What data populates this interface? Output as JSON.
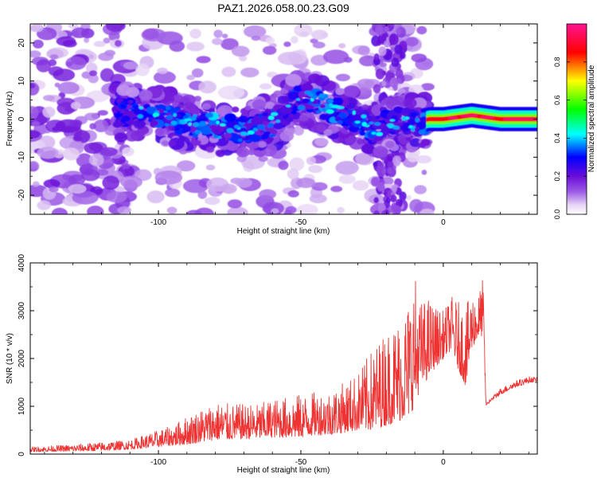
{
  "title": "PAZ1.2026.058.00.23.G09",
  "chart_data": [
    {
      "type": "heatmap",
      "title": "PAZ1.2026.058.00.23.G09",
      "xlabel": "Height of straight line (km)",
      "ylabel": "Frequency (Hz)",
      "xlim": [
        -145,
        33
      ],
      "ylim": [
        -25,
        25
      ],
      "xticks": [
        -100,
        -50,
        0
      ],
      "yticks": [
        -20,
        -10,
        0,
        10,
        20
      ],
      "colorbar": {
        "label": "Normalized spectral amplitude",
        "range": [
          0,
          1
        ],
        "ticks": [
          0.0,
          0.2,
          0.4,
          0.6,
          0.8
        ],
        "colors": [
          "#ffffff",
          "#e6d3f5",
          "#9b59e6",
          "#6a0dd9",
          "#0000ff",
          "#00ffff",
          "#00ff00",
          "#ffff00",
          "#ff0000",
          "#ff1493"
        ]
      },
      "ridge": {
        "x": [
          -115,
          -100,
          -90,
          -80,
          -70,
          -60,
          -55,
          -50,
          -40,
          -30,
          -25,
          -15,
          -10,
          -5,
          0,
          5,
          10,
          15,
          20,
          25,
          33
        ],
        "frequency": [
          2,
          1,
          -1,
          -2,
          -3,
          -1,
          2,
          6,
          3,
          0,
          -3,
          0,
          -1,
          0,
          0,
          0.5,
          1,
          0.5,
          0,
          0,
          0
        ],
        "peak_amplitude": [
          0.25,
          0.3,
          0.3,
          0.35,
          0.3,
          0.3,
          0.3,
          0.3,
          0.35,
          0.35,
          0.3,
          0.2,
          0.25,
          0.35,
          0.9,
          0.9,
          0.95,
          0.9,
          0.85,
          0.85,
          0.8
        ]
      }
    },
    {
      "type": "line",
      "xlabel": "Height of straight line (km)",
      "ylabel": "SNR (10 * v/v)",
      "xlim": [
        -145,
        33
      ],
      "ylim": [
        0,
        4000
      ],
      "xticks": [
        -100,
        -50,
        0
      ],
      "yticks": [
        0,
        1000,
        2000,
        3000,
        4000
      ],
      "series": [
        {
          "name": "SNR",
          "color": "#ee3333",
          "x": [
            -145,
            -130,
            -120,
            -110,
            -100,
            -95,
            -90,
            -85,
            -80,
            -75,
            -70,
            -65,
            -60,
            -55,
            -50,
            -45,
            -40,
            -35,
            -30,
            -25,
            -20,
            -15,
            -12,
            -10,
            -8,
            -5,
            -3,
            0,
            3,
            5,
            8,
            10,
            12,
            14,
            15,
            20,
            25,
            30,
            33
          ],
          "envelope_low": [
            50,
            60,
            70,
            100,
            150,
            180,
            200,
            250,
            300,
            300,
            320,
            320,
            350,
            350,
            350,
            400,
            400,
            450,
            500,
            500,
            600,
            700,
            800,
            1000,
            1400,
            1600,
            1800,
            2000,
            2200,
            1800,
            1400,
            2200,
            2400,
            2500,
            1000,
            1200,
            1350,
            1450,
            1500
          ],
          "envelope_high": [
            150,
            200,
            250,
            300,
            500,
            600,
            800,
            950,
            1100,
            1050,
            1050,
            1050,
            1150,
            1200,
            1250,
            1300,
            1350,
            1500,
            1700,
            2200,
            2600,
            2900,
            3300,
            3800,
            3200,
            3300,
            3100,
            3000,
            3300,
            3200,
            3100,
            3400,
            3300,
            3700,
            1100,
            1450,
            1600,
            1700,
            1650
          ]
        }
      ]
    }
  ]
}
